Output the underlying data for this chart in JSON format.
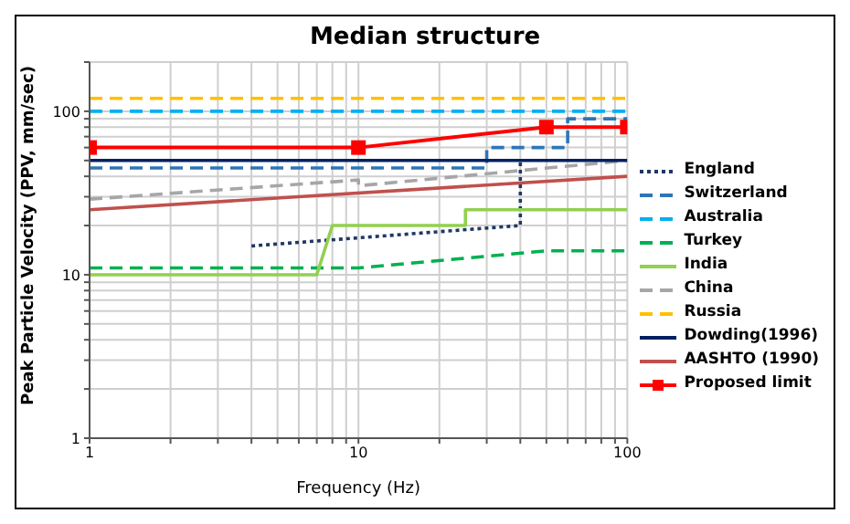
{
  "chart_data": {
    "type": "line",
    "title": "Median structure",
    "xlabel": "Frequency (Hz)",
    "ylabel": "Peak Particle Velocity (PPV, mm/sec)",
    "log": "xy",
    "grid": true,
    "legend": "right",
    "xlim": [
      1,
      100
    ],
    "ylim": [
      1,
      200
    ],
    "xticks": [
      1,
      {
        "value": 2,
        "label": null
      },
      {
        "value": 3,
        "label": null
      },
      {
        "value": 4,
        "label": null
      },
      {
        "value": 5,
        "label": null
      },
      {
        "value": 6,
        "label": null
      },
      {
        "value": 7,
        "label": null
      },
      {
        "value": 8,
        "label": null
      },
      {
        "value": 9,
        "label": null
      },
      10,
      {
        "value": 20,
        "label": null
      },
      {
        "value": 30,
        "label": null
      },
      {
        "value": 40,
        "label": null
      },
      {
        "value": 50,
        "label": null
      },
      {
        "value": 60,
        "label": null
      },
      {
        "value": 70,
        "label": null
      },
      {
        "value": 80,
        "label": null
      },
      {
        "value": 90,
        "label": null
      },
      100
    ],
    "yticks": [
      1,
      {
        "value": 2,
        "label": null
      },
      {
        "value": 3,
        "label": null
      },
      {
        "value": 4,
        "label": null
      },
      {
        "value": 5,
        "label": null
      },
      {
        "value": 6,
        "label": null
      },
      {
        "value": 7,
        "label": null
      },
      {
        "value": 8,
        "label": null
      },
      {
        "value": 9,
        "label": null
      },
      10,
      {
        "value": 20,
        "label": null
      },
      {
        "value": 30,
        "label": null
      },
      {
        "value": 40,
        "label": null
      },
      {
        "value": 50,
        "label": null
      },
      {
        "value": 60,
        "label": null
      },
      {
        "value": 70,
        "label": null
      },
      {
        "value": 80,
        "label": null
      },
      {
        "value": 90,
        "label": null
      },
      100,
      {
        "value": 200,
        "label": null
      }
    ],
    "series": [
      {
        "name": "England",
        "color": "#1f3864",
        "line_style": "dotted",
        "marker": "none",
        "x": [
          4,
          40,
          40
        ],
        "values": [
          15,
          20,
          50
        ]
      },
      {
        "name": "Switzerland",
        "color": "#2e75b6",
        "line_style": "dashed",
        "marker": "none",
        "x": [
          1,
          30,
          30,
          60,
          60,
          100
        ],
        "values": [
          45,
          45,
          60,
          60,
          90,
          90
        ]
      },
      {
        "name": "Australia",
        "color": "#00b0f0",
        "line_style": "dashed",
        "marker": "none",
        "x": [
          1,
          100
        ],
        "values": [
          100,
          100
        ]
      },
      {
        "name": "Turkey",
        "color": "#00b050",
        "line_style": "dashed",
        "marker": "none",
        "x": [
          1,
          10,
          50,
          100
        ],
        "values": [
          11,
          11,
          14,
          14
        ]
      },
      {
        "name": "India",
        "color": "#92d050",
        "line_style": "solid",
        "marker": "none",
        "x": [
          1,
          7,
          8,
          25,
          25,
          100
        ],
        "values": [
          10,
          10,
          20,
          20,
          25,
          25
        ]
      },
      {
        "name": "China",
        "color": "#a6a6a6",
        "line_style": "dashed",
        "marker": "none",
        "x": [
          1,
          10,
          10,
          100
        ],
        "values": [
          29,
          38,
          35,
          50
        ]
      },
      {
        "name": "Russia",
        "color": "#ffc000",
        "line_style": "dashed",
        "marker": "none",
        "x": [
          1,
          100
        ],
        "values": [
          120,
          120
        ]
      },
      {
        "name": "Dowding(1996)",
        "color": "#002060",
        "line_style": "solid",
        "marker": "none",
        "x": [
          1,
          100
        ],
        "values": [
          50,
          50
        ]
      },
      {
        "name": "AASHTO (1990)",
        "color": "#c0504d",
        "line_style": "solid",
        "marker": "none",
        "x": [
          1,
          100
        ],
        "values": [
          25,
          40
        ]
      },
      {
        "name": "Proposed limit",
        "color": "#ff0000",
        "line_style": "solid",
        "marker": "square",
        "x": [
          1,
          10,
          50,
          100
        ],
        "values": [
          60,
          60,
          80,
          80
        ]
      }
    ]
  }
}
